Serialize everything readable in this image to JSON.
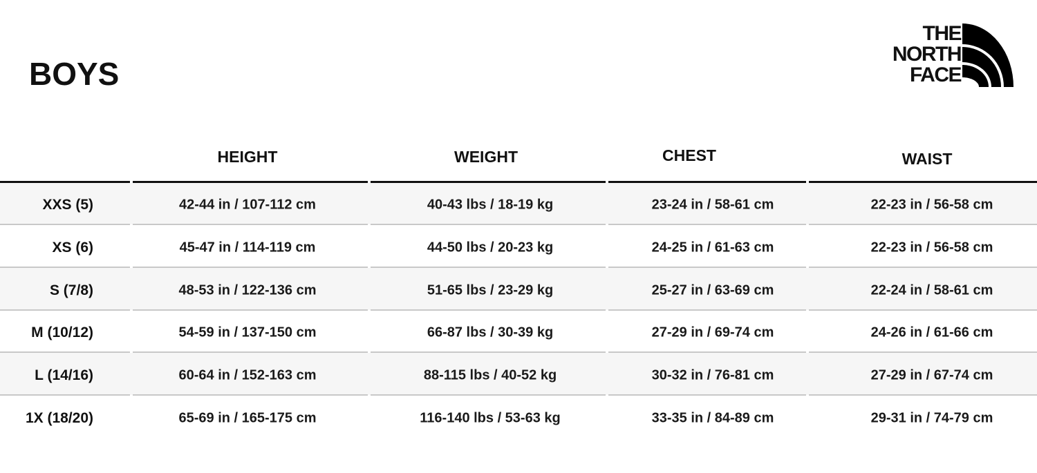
{
  "title": "BOYS",
  "logo": {
    "lines": [
      "THE",
      "NORTH",
      "FACE"
    ]
  },
  "table": {
    "headers": [
      "HEIGHT",
      "WEIGHT",
      "CHEST",
      "WAIST"
    ],
    "rows": [
      {
        "size": "XXS (5)",
        "height": "42-44 in / 107-112 cm",
        "weight": "40-43 lbs / 18-19 kg",
        "chest": "23-24 in / 58-61 cm",
        "waist": "22-23 in / 56-58 cm"
      },
      {
        "size": "XS (6)",
        "height": "45-47 in / 114-119 cm",
        "weight": "44-50 lbs / 20-23 kg",
        "chest": "24-25 in / 61-63 cm",
        "waist": "22-23 in / 56-58 cm"
      },
      {
        "size": "S (7/8)",
        "height": "48-53 in / 122-136 cm",
        "weight": "51-65 lbs / 23-29 kg",
        "chest": "25-27 in / 63-69 cm",
        "waist": "22-24 in / 58-61 cm"
      },
      {
        "size": "M (10/12)",
        "height": "54-59 in / 137-150 cm",
        "weight": "66-87 lbs / 30-39 kg",
        "chest": "27-29 in / 69-74 cm",
        "waist": "24-26 in / 61-66 cm"
      },
      {
        "size": "L (14/16)",
        "height": "60-64 in / 152-163 cm",
        "weight": "88-115 lbs / 40-52 kg",
        "chest": "30-32 in / 76-81 cm",
        "waist": "27-29 in / 67-74 cm"
      },
      {
        "size": "1X (18/20)",
        "height": "65-69 in / 165-175 cm",
        "weight": "116-140 lbs / 53-63 kg",
        "chest": "33-35 in / 84-89 cm",
        "waist": "29-31 in / 74-79 cm"
      }
    ]
  }
}
